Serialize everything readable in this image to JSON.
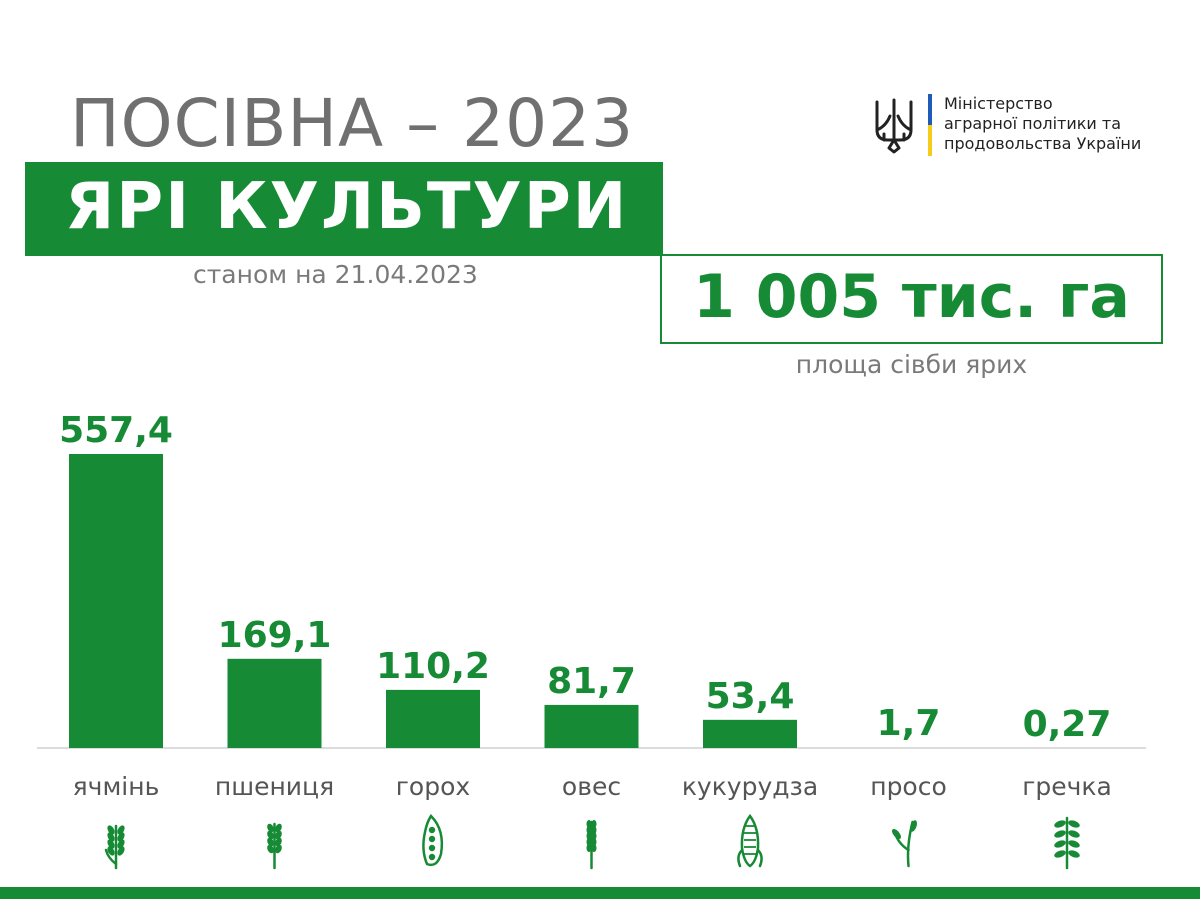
{
  "header": {
    "title": "ПОСІВНА – 2023",
    "subtitle": "ЯРІ КУЛЬТУРИ",
    "as_of": "станом на 21.04.2023"
  },
  "ministry": {
    "lines": [
      "Міністерство",
      "аграрної політики та",
      "продовольства України"
    ],
    "emblem_icon": "trident-icon"
  },
  "total": {
    "value": "1 005 тис. га",
    "caption": "площа сівби ярих"
  },
  "colors": {
    "accent": "#168a35",
    "text_gray": "#707070",
    "flag_blue": "#1f5bb8",
    "flag_yellow": "#f5cc1a"
  },
  "chart_data": {
    "type": "bar",
    "categories": [
      "ячмінь",
      "пшениця",
      "горох",
      "овес",
      "кукурудза",
      "просо",
      "гречка"
    ],
    "values": [
      557.4,
      169.1,
      110.2,
      81.7,
      53.4,
      1.7,
      0.27
    ],
    "value_labels": [
      "557,4",
      "169,1",
      "110,2",
      "81,7",
      "53,4",
      "1,7",
      "0,27"
    ],
    "icons": [
      "barley-icon",
      "wheat-icon",
      "pea-pod-icon",
      "oat-icon",
      "corn-icon",
      "millet-icon",
      "buckwheat-icon"
    ],
    "ylim": [
      0,
      557.4
    ],
    "grid": false,
    "legend": "none"
  }
}
